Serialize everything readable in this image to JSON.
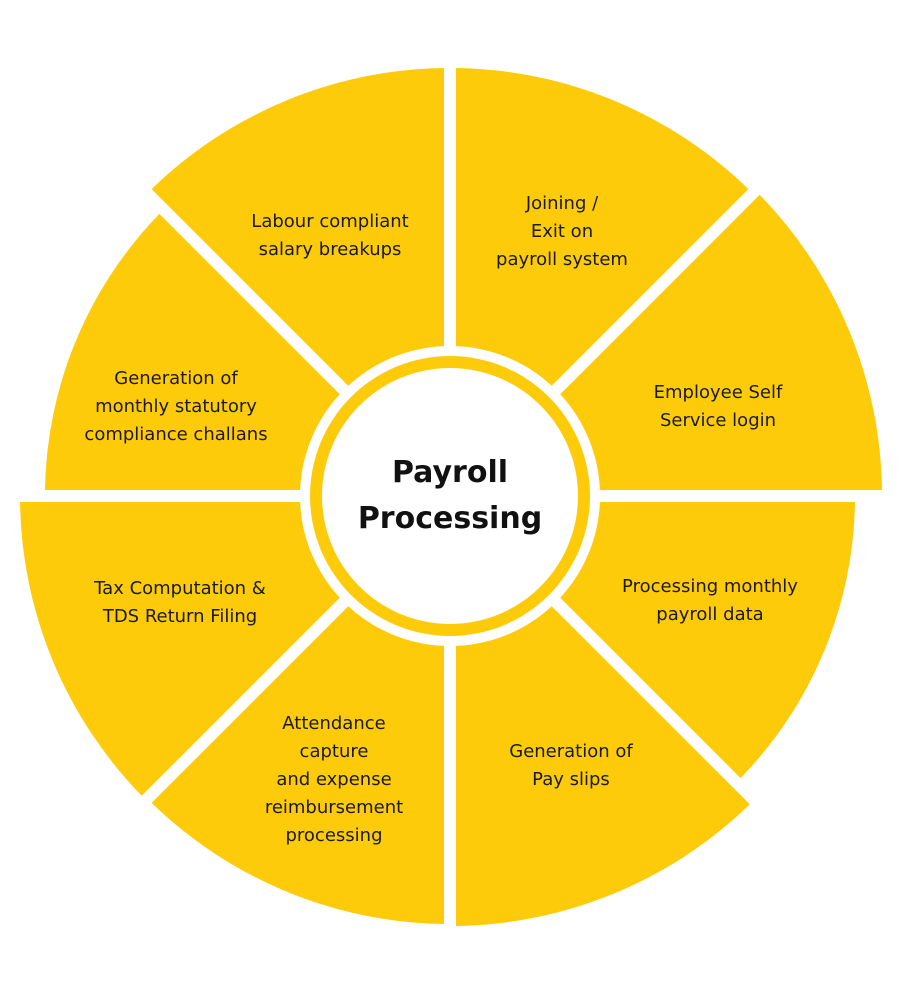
{
  "center": {
    "title": "Payroll\nProcessing"
  },
  "colors": {
    "segment": "#FECB0A",
    "background": "#FFFFFF",
    "ring": "#FECB0A",
    "text": "#1A1A1A"
  },
  "segments": [
    {
      "label": "Joining /\nExit on\npayroll system"
    },
    {
      "label": "Employee Self\nService login"
    },
    {
      "label": "Processing monthly\npayroll data"
    },
    {
      "label": "Generation of\nPay slips"
    },
    {
      "label": "Attendance\ncapture\nand expense\nreimbursement\nprocessing"
    },
    {
      "label": "Tax Computation &\nTDS Return Filing"
    },
    {
      "label": "Generation of\nmonthly statutory\ncompliance challans"
    },
    {
      "label": "Labour compliant\nsalary breakups"
    }
  ]
}
